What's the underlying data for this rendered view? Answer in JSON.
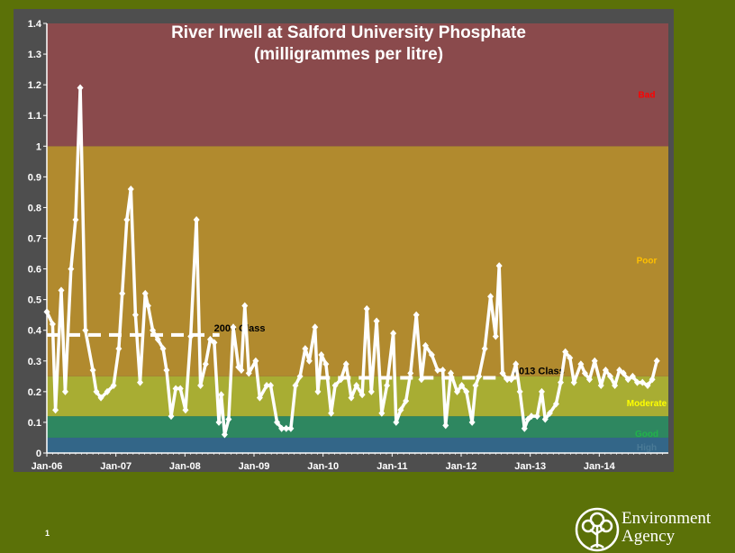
{
  "chart_data": {
    "type": "line",
    "title": "River Irwell at Salford University Phosphate",
    "subtitle": "(milligrammes per litre)",
    "xlabel": "",
    "ylabel": "",
    "ylim": [
      0,
      1.4
    ],
    "y_ticks": [
      "0",
      "0.1",
      "0.2",
      "0.3",
      "0.4",
      "0.5",
      "0.6",
      "0.7",
      "0.8",
      "0.9",
      "1",
      "1.1",
      "1.2",
      "1.3",
      "1.4"
    ],
    "x_ticks": [
      "Jan-06",
      "Jan-07",
      "Jan-08",
      "Jan-09",
      "Jan-10",
      "Jan-11",
      "Jan-12",
      "Jan-13",
      "Jan-14"
    ],
    "xlim_months": [
      0,
      108
    ],
    "grid": false,
    "bands": [
      {
        "label": "High",
        "from": 0,
        "to": 0.05,
        "color": "#336688",
        "label_color": "#4a7a96"
      },
      {
        "label": "Good",
        "from": 0.05,
        "to": 0.12,
        "color": "#2e8760",
        "label_color": "#22b24c"
      },
      {
        "label": "Moderate",
        "from": 0.12,
        "to": 0.25,
        "color": "#a8ad33",
        "label_color": "#ffff00"
      },
      {
        "label": "Poor",
        "from": 0.25,
        "to": 1.0,
        "color": "#b18a2e",
        "label_color": "#ffc000"
      },
      {
        "label": "Bad",
        "from": 1.0,
        "to": 1.4,
        "color": "#8a4a4c",
        "label_color": "#ff0000"
      }
    ],
    "class_lines": [
      {
        "label": "2009 Class",
        "value": 0.385,
        "from_month": 0,
        "to_month": 30
      },
      {
        "label": "2013 Class",
        "value": 0.245,
        "from_month": 47,
        "to_month": 82
      }
    ],
    "series": [
      {
        "color": "#ffffff",
        "x_months": [
          0,
          1,
          1.5,
          2.5,
          3.2,
          4.2,
          5,
          5.8,
          6.7,
          8,
          8.6,
          9.4,
          10.5,
          11.6,
          12.5,
          13.1,
          13.9,
          14.6,
          15.4,
          16.2,
          17.1,
          17.6,
          18.4,
          19.3,
          20.2,
          20.8,
          21.6,
          22.4,
          23.2,
          24.1,
          25,
          26,
          26.7,
          27.6,
          28.4,
          29.1,
          29.9,
          30.3,
          30.9,
          31.6,
          32.4,
          33.3,
          33.8,
          34.4,
          35.1,
          36.3,
          37,
          38.2,
          38.9,
          40,
          40.8,
          41.6,
          42.4,
          43.2,
          44,
          44.9,
          45.6,
          46.6,
          47.1,
          47.7,
          48.5,
          49.4,
          50.1,
          51.1,
          52,
          52.9,
          53.8,
          54.8,
          55.6,
          56.4,
          57.3,
          58.2,
          59.1,
          60.2,
          60.7,
          61.5,
          62.4,
          63.2,
          64.2,
          65.1,
          65.8,
          66.9,
          67.9,
          68.8,
          69.3,
          70.2,
          71.3,
          72.1,
          72.9,
          73.9,
          74.5,
          75.1,
          76.1,
          77.1,
          78,
          78.6,
          79.2,
          80,
          80.7,
          81.5,
          82.2,
          83,
          83.6,
          84.2,
          85.2,
          86,
          86.6,
          87.4,
          88.5,
          89.3,
          90.1,
          90.9,
          91.6,
          92.8,
          93.5,
          94.3,
          95.2,
          96.3,
          97.1,
          97.9,
          98.7,
          99.5,
          100.2,
          101,
          101.8,
          102.6,
          103.5,
          104.4,
          105.2,
          106
        ],
        "values": [
          0.46,
          0.42,
          0.14,
          0.53,
          0.2,
          0.6,
          0.76,
          1.19,
          0.4,
          0.27,
          0.2,
          0.18,
          0.2,
          0.22,
          0.34,
          0.52,
          0.76,
          0.86,
          0.45,
          0.23,
          0.52,
          0.48,
          0.4,
          0.37,
          0.34,
          0.27,
          0.12,
          0.21,
          0.21,
          0.14,
          0.38,
          0.76,
          0.22,
          0.29,
          0.37,
          0.36,
          0.1,
          0.19,
          0.06,
          0.11,
          0.41,
          0.28,
          0.27,
          0.48,
          0.26,
          0.3,
          0.18,
          0.22,
          0.22,
          0.1,
          0.08,
          0.08,
          0.08,
          0.22,
          0.25,
          0.34,
          0.3,
          0.41,
          0.2,
          0.32,
          0.29,
          0.13,
          0.22,
          0.24,
          0.29,
          0.18,
          0.22,
          0.19,
          0.47,
          0.2,
          0.43,
          0.13,
          0.22,
          0.39,
          0.1,
          0.14,
          0.17,
          0.26,
          0.45,
          0.24,
          0.35,
          0.32,
          0.27,
          0.27,
          0.09,
          0.26,
          0.2,
          0.22,
          0.2,
          0.1,
          0.22,
          0.25,
          0.34,
          0.51,
          0.38,
          0.61,
          0.26,
          0.24,
          0.24,
          0.29,
          0.2,
          0.08,
          0.11,
          0.12,
          0.12,
          0.2,
          0.11,
          0.13,
          0.16,
          0.23,
          0.33,
          0.31,
          0.23,
          0.29,
          0.26,
          0.24,
          0.3,
          0.22,
          0.27,
          0.25,
          0.22,
          0.27,
          0.26,
          0.24,
          0.25,
          0.23,
          0.23,
          0.22,
          0.24,
          0.3
        ]
      }
    ]
  },
  "footer": {
    "slide_number": "1",
    "logo_line1": "Environment",
    "logo_line2": "Agency"
  }
}
